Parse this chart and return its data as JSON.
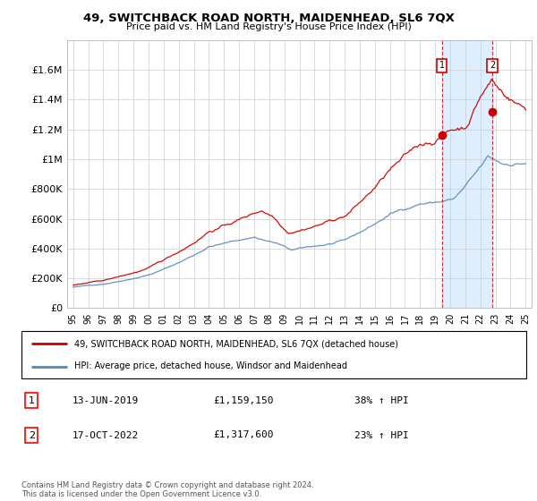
{
  "title": "49, SWITCHBACK ROAD NORTH, MAIDENHEAD, SL6 7QX",
  "subtitle": "Price paid vs. HM Land Registry's House Price Index (HPI)",
  "legend_line1": "49, SWITCHBACK ROAD NORTH, MAIDENHEAD, SL6 7QX (detached house)",
  "legend_line2": "HPI: Average price, detached house, Windsor and Maidenhead",
  "transaction1_date": "13-JUN-2019",
  "transaction1_price": "£1,159,150",
  "transaction1_hpi": "38% ↑ HPI",
  "transaction2_date": "17-OCT-2022",
  "transaction2_price": "£1,317,600",
  "transaction2_hpi": "23% ↑ HPI",
  "footer": "Contains HM Land Registry data © Crown copyright and database right 2024.\nThis data is licensed under the Open Government Licence v3.0.",
  "red_color": "#cc0000",
  "blue_color": "#5588bb",
  "shade_color": "#ddeeff",
  "marker1_x": 2019.45,
  "marker1_y": 1159150,
  "marker2_x": 2022.79,
  "marker2_y": 1317600,
  "ylim": [
    0,
    1800000
  ],
  "yticks": [
    0,
    200000,
    400000,
    600000,
    800000,
    1000000,
    1200000,
    1400000,
    1600000
  ],
  "ytick_labels": [
    "£0",
    "£200K",
    "£400K",
    "£600K",
    "£800K",
    "£1M",
    "£1.2M",
    "£1.4M",
    "£1.6M"
  ],
  "xlim_start": 1994.6,
  "xlim_end": 2025.4,
  "xtick_years": [
    1995,
    1996,
    1997,
    1998,
    1999,
    2000,
    2001,
    2002,
    2003,
    2004,
    2005,
    2006,
    2007,
    2008,
    2009,
    2010,
    2011,
    2012,
    2013,
    2014,
    2015,
    2016,
    2017,
    2018,
    2019,
    2020,
    2021,
    2022,
    2023,
    2024,
    2025
  ],
  "xtick_labels": [
    "95",
    "96",
    "97",
    "98",
    "99",
    "00",
    "01",
    "02",
    "03",
    "04",
    "05",
    "06",
    "07",
    "08",
    "09",
    "10",
    "11",
    "12",
    "13",
    "14",
    "15",
    "16",
    "17",
    "18",
    "19",
    "20",
    "21",
    "22",
    "23",
    "24",
    "25"
  ]
}
